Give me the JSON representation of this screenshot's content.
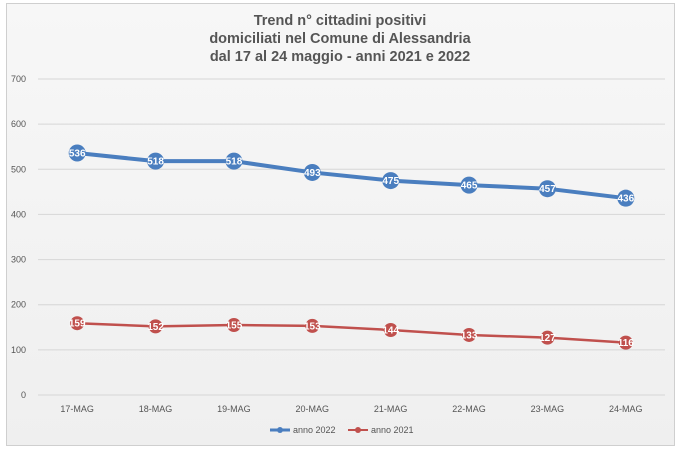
{
  "chart_data": {
    "type": "line",
    "title_lines": [
      "Trend n° cittadini positivi",
      "domiciliati nel Comune di Alessandria",
      "dal 17 al 24 maggio - anni 2021 e 2022"
    ],
    "categories": [
      "17-MAG",
      "18-MAG",
      "19-MAG",
      "20-MAG",
      "21-MAG",
      "22-MAG",
      "23-MAG",
      "24-MAG"
    ],
    "ylim": [
      0,
      700
    ],
    "yticks": [
      "0",
      "100",
      "200",
      "300",
      "400",
      "500",
      "600",
      "700"
    ],
    "grid": true,
    "legend_position": "bottom",
    "series": [
      {
        "name": "anno 2022",
        "color": "#4a7ebf",
        "values": [
          536,
          518,
          518,
          493,
          475,
          465,
          457,
          436
        ],
        "labels": [
          "536",
          "518",
          "518",
          "493",
          "475",
          "465",
          "457",
          "436"
        ]
      },
      {
        "name": "anno 2021",
        "color": "#c0504d",
        "values": [
          159,
          152,
          155,
          153,
          144,
          133,
          127,
          116
        ],
        "labels": [
          "159",
          "152",
          "155",
          "153",
          "144",
          "133",
          "127",
          "116"
        ]
      }
    ]
  }
}
